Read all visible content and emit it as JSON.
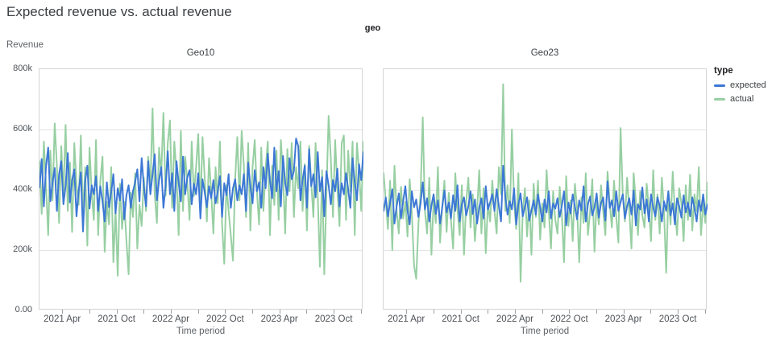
{
  "page": {
    "title": "Expected revenue vs. actual revenue"
  },
  "facet": {
    "label": "geo"
  },
  "axes": {
    "y_title": "Revenue",
    "x_title": "Time period",
    "y_ticks": [
      "800k",
      "600k",
      "400k",
      "200k",
      "0.00"
    ],
    "x_ticks": [
      "2021 Apr",
      "2021 Oct",
      "2022 Apr",
      "2022 Oct",
      "2023 Apr",
      "2023 Oct"
    ]
  },
  "legend": {
    "title": "type",
    "items": [
      {
        "label": "expected",
        "color": "#3c78d5"
      },
      {
        "label": "actual",
        "color": "#97cfa2"
      }
    ]
  },
  "colors": {
    "expected_line": "#3c78d5",
    "actual_line": "#97cfa2",
    "gridline": "#e4e4e4",
    "panel_border": "#d5d5d5",
    "tick": "#9aa0a6",
    "title_text": "#3c4043",
    "axis_text": "#5f6368"
  },
  "chart_data": [
    {
      "type": "line",
      "title": "Geo10",
      "x_unit": "week",
      "x_range": [
        "2021 Jan",
        "2023 Dec"
      ],
      "ylim": [
        0,
        800000
      ],
      "value_unit": "thousands",
      "grid": true,
      "series": [
        {
          "name": "expected",
          "values": [
            408,
            502,
            345,
            478,
            540,
            362,
            425,
            472,
            330,
            452,
            495,
            352,
            412,
            522,
            358,
            432,
            468,
            312,
            395,
            458,
            262,
            428,
            480,
            338,
            415,
            385,
            445,
            330,
            412,
            362,
            295,
            425,
            342,
            392,
            452,
            322,
            405,
            365,
            435,
            302,
            382,
            415,
            340,
            395,
            425,
            468,
            362,
            505,
            412,
            345,
            495,
            385,
            452,
            518,
            365,
            432,
            475,
            340,
            412,
            528,
            385,
            455,
            330,
            495,
            422,
            362,
            510,
            385,
            442,
            465,
            352,
            420,
            385,
            455,
            305,
            435,
            392,
            342,
            412,
            372,
            432,
            355,
            395,
            445,
            310,
            422,
            382,
            452,
            340,
            405,
            435,
            365,
            415,
            385,
            452,
            330,
            490,
            412,
            355,
            465,
            395,
            425,
            340,
            475,
            405,
            520,
            432,
            372,
            540,
            395,
            462,
            345,
            512,
            422,
            382,
            505,
            435,
            462,
            570,
            545,
            365,
            432,
            480,
            340,
            535,
            412,
            452,
            375,
            525,
            395,
            442,
            312,
            462,
            415,
            352,
            432,
            395,
            470,
            345,
            422,
            385,
            455,
            402,
            340,
            505,
            425,
            365,
            485,
            432,
            525
          ]
        },
        {
          "name": "actual",
          "values": [
            495,
            320,
            560,
            415,
            250,
            530,
            365,
            620,
            480,
            290,
            545,
            380,
            615,
            330,
            490,
            260,
            555,
            420,
            350,
            580,
            310,
            475,
            215,
            540,
            390,
            300,
            565,
            250,
            430,
            510,
            195,
            360,
            285,
            475,
            160,
            335,
            115,
            420,
            270,
            360,
            230,
            120,
            390,
            310,
            455,
            205,
            350,
            280,
            440,
            330,
            510,
            410,
            670,
            385,
            290,
            540,
            450,
            655,
            380,
            555,
            630,
            340,
            560,
            455,
            250,
            595,
            330,
            510,
            425,
            300,
            560,
            380,
            475,
            585,
            330,
            575,
            440,
            295,
            505,
            390,
            255,
            475,
            355,
            560,
            285,
            155,
            415,
            330,
            250,
            165,
            435,
            575,
            365,
            595,
            480,
            310,
            555,
            265,
            475,
            565,
            395,
            285,
            540,
            330,
            470,
            560,
            250,
            480,
            350,
            530,
            300,
            565,
            450,
            255,
            535,
            395,
            555,
            310,
            475,
            405,
            560,
            330,
            485,
            265,
            545,
            425,
            310,
            555,
            380,
            145,
            465,
            120,
            390,
            645,
            505,
            310,
            565,
            405,
            280,
            555,
            580,
            300,
            530,
            395,
            560,
            250,
            555,
            465,
            330,
            560
          ]
        }
      ]
    },
    {
      "type": "line",
      "title": "Geo23",
      "x_unit": "week",
      "x_range": [
        "2021 Jan",
        "2023 Dec"
      ],
      "ylim": [
        0,
        800000
      ],
      "value_unit": "thousands",
      "grid": true,
      "series": [
        {
          "name": "expected",
          "values": [
            330,
            375,
            312,
            358,
            402,
            288,
            345,
            388,
            305,
            362,
            412,
            330,
            285,
            395,
            342,
            368,
            310,
            355,
            425,
            335,
            372,
            295,
            348,
            385,
            320,
            365,
            288,
            342,
            398,
            325,
            358,
            305,
            382,
            330,
            415,
            295,
            352,
            375,
            315,
            345,
            395,
            320,
            368,
            288,
            342,
            372,
            305,
            412,
            335,
            358,
            385,
            330,
            402,
            348,
            295,
            480,
            375,
            318,
            362,
            335,
            405,
            285,
            352,
            388,
            312,
            345,
            375,
            298,
            332,
            365,
            318,
            385,
            342,
            295,
            368,
            325,
            395,
            305,
            355,
            338,
            372,
            310,
            348,
            395,
            282,
            358,
            322,
            385,
            345,
            302,
            365,
            332,
            412,
            295,
            352,
            378,
            315,
            342,
            388,
            308,
            355,
            375,
            298,
            428,
            340,
            365,
            312,
            395,
            330,
            358,
            385,
            305,
            345,
            372,
            318,
            398,
            282,
            352,
            335,
            408,
            322,
            368,
            295,
            385,
            342,
            312,
            375,
            348,
            295,
            362,
            330,
            395,
            315,
            355,
            285,
            372,
            345,
            308,
            382,
            325,
            358,
            312,
            375,
            340,
            295,
            365,
            330,
            385,
            318,
            352
          ]
        },
        {
          "name": "actual",
          "values": [
            455,
            365,
            270,
            430,
            200,
            480,
            330,
            255,
            410,
            305,
            360,
            245,
            435,
            320,
            150,
            105,
            285,
            390,
            640,
            330,
            255,
            440,
            185,
            365,
            290,
            475,
            225,
            345,
            430,
            260,
            390,
            300,
            205,
            455,
            335,
            250,
            415,
            185,
            360,
            440,
            275,
            385,
            230,
            330,
            465,
            255,
            405,
            190,
            355,
            295,
            430,
            330,
            255,
            475,
            385,
            750,
            330,
            415,
            290,
            600,
            360,
            270,
            455,
            95,
            330,
            405,
            245,
            365,
            185,
            420,
            310,
            430,
            235,
            355,
            275,
            465,
            330,
            205,
            395,
            300,
            255,
            410,
            320,
            160,
            445,
            280,
            365,
            230,
            420,
            340,
            160,
            375,
            290,
            455,
            250,
            330,
            435,
            195,
            365,
            285,
            415,
            330,
            250,
            460,
            355,
            275,
            430,
            310,
            225,
            605,
            385,
            295,
            440,
            330,
            205,
            455,
            365,
            250,
            395,
            315,
            275,
            420,
            340,
            230,
            465,
            300,
            385,
            255,
            440,
            330,
            125,
            395,
            285,
            460,
            330,
            250,
            405,
            355,
            230,
            415,
            300,
            450,
            265,
            385,
            330,
            475,
            250,
            360,
            290,
            425
          ]
        }
      ]
    }
  ]
}
